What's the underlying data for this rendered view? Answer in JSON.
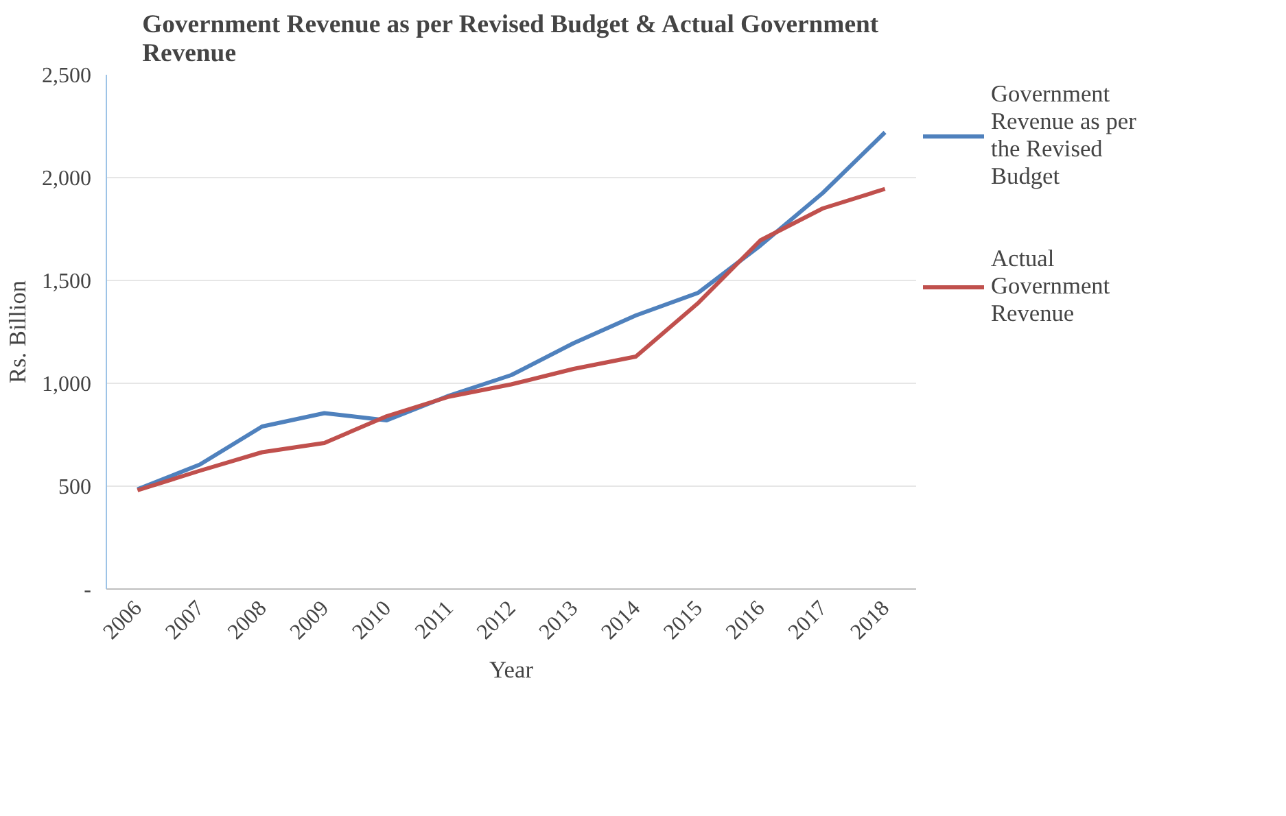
{
  "chart_data": {
    "type": "line",
    "title": "Government Revenue as per Revised Budget & Actual Government Revenue",
    "xlabel": "Year",
    "ylabel": "Rs. Billion",
    "categories": [
      "2006",
      "2007",
      "2008",
      "2009",
      "2010",
      "2011",
      "2012",
      "2013",
      "2014",
      "2015",
      "2016",
      "2017",
      "2018"
    ],
    "series": [
      {
        "name": "Government Revenue as per the Revised Budget",
        "color": "#4f81bd",
        "values": [
          485,
          605,
          790,
          855,
          820,
          940,
          1040,
          1195,
          1330,
          1440,
          1670,
          1925,
          2220
        ]
      },
      {
        "name": "Actual Government Revenue",
        "color": "#c0504d",
        "values": [
          480,
          575,
          665,
          710,
          840,
          935,
          995,
          1070,
          1130,
          1390,
          1695,
          1850,
          1945
        ]
      }
    ],
    "ylim": [
      0,
      2500
    ],
    "yticks": [
      {
        "value": 0,
        "label": "-"
      },
      {
        "value": 500,
        "label": "500"
      },
      {
        "value": 1000,
        "label": "1,000"
      },
      {
        "value": 1500,
        "label": "1,500"
      },
      {
        "value": 2000,
        "label": "2,000"
      },
      {
        "value": 2500,
        "label": "2,500"
      }
    ],
    "grid": "y",
    "legend": "right",
    "marker": "none",
    "line_style": "solid"
  }
}
